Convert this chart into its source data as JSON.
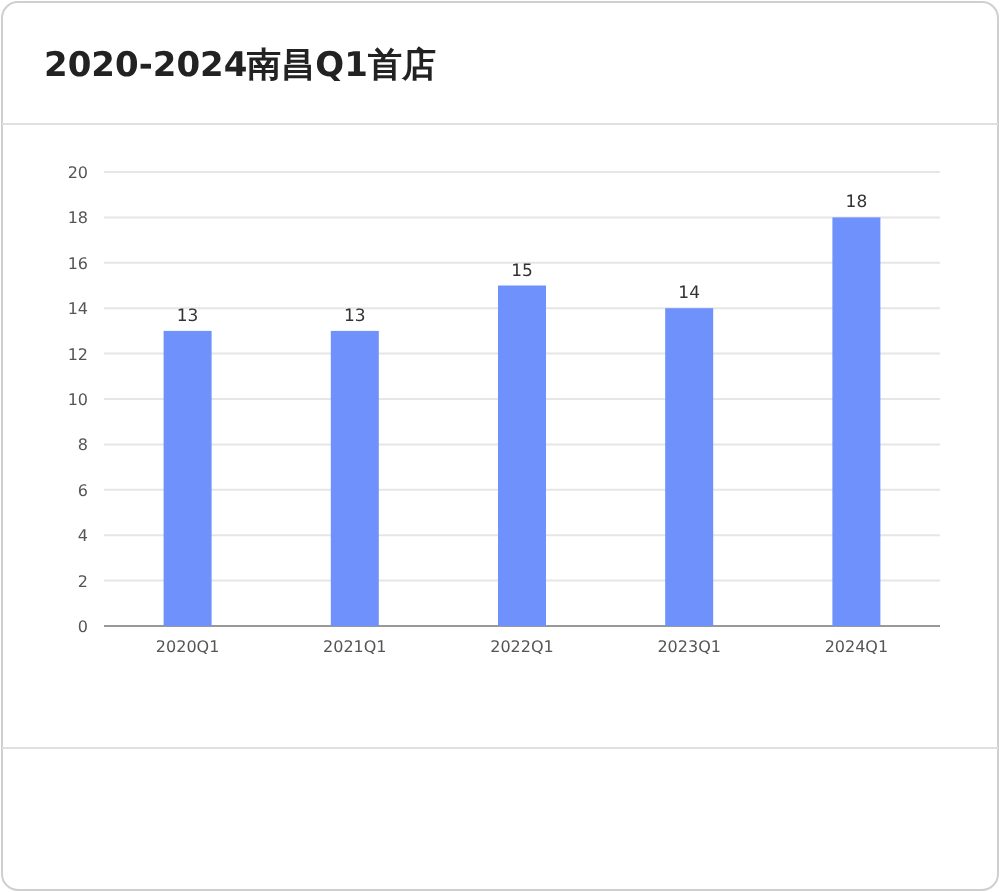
{
  "chart_data": {
    "type": "bar",
    "title": "2020-2024南昌Q1首店",
    "categories": [
      "2020Q1",
      "2021Q1",
      "2022Q1",
      "2023Q1",
      "2024Q1"
    ],
    "values": [
      13,
      13,
      15,
      14,
      18
    ],
    "color": "#6e91fb",
    "ylim": [
      0,
      20
    ],
    "yticks": [
      0,
      2,
      4,
      6,
      8,
      10,
      12,
      14,
      16,
      18,
      20
    ],
    "grid": "y",
    "data_labels": true
  }
}
